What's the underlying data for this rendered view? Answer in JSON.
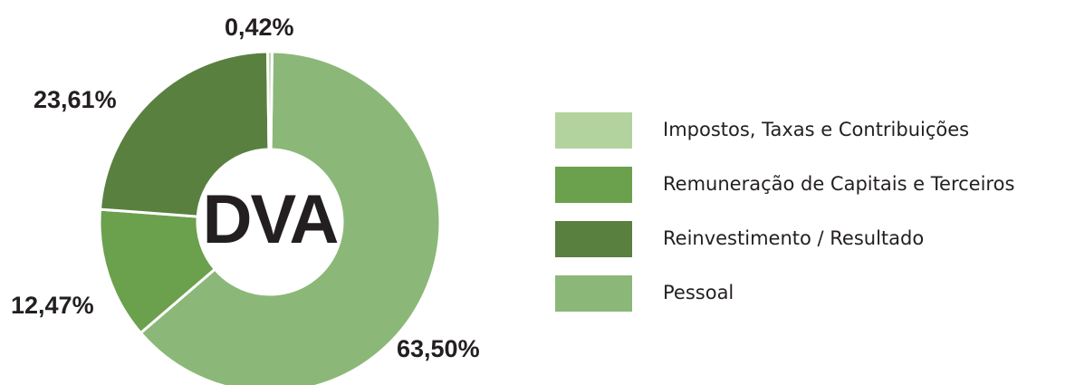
{
  "chart_data": {
    "type": "pie",
    "center_label": "DVA",
    "slices": [
      {
        "label": "Pessoal",
        "value": 63.5,
        "display": "63,50%",
        "color": "#8bb878"
      },
      {
        "label": "Remuneração de Capitais e Terceiros",
        "value": 12.47,
        "display": "12,47%",
        "color": "#6ba04d"
      },
      {
        "label": "Reinvestimento / Resultado",
        "value": 23.61,
        "display": "23,61%",
        "color": "#5a8040"
      },
      {
        "label": "Impostos, Taxas e Contribuições",
        "value": 0.42,
        "display": "0,42%",
        "color": "#b3d39e"
      }
    ],
    "legend": [
      {
        "label": "Impostos, Taxas e Contribuições",
        "color": "#b3d39e"
      },
      {
        "label": "Remuneração de Capitais e Terceiros",
        "color": "#6ba04d"
      },
      {
        "label": "Reinvestimento / Resultado",
        "color": "#5a8040"
      },
      {
        "label": "Pessoal",
        "color": "#8bb878"
      }
    ],
    "legend_position": "right"
  }
}
